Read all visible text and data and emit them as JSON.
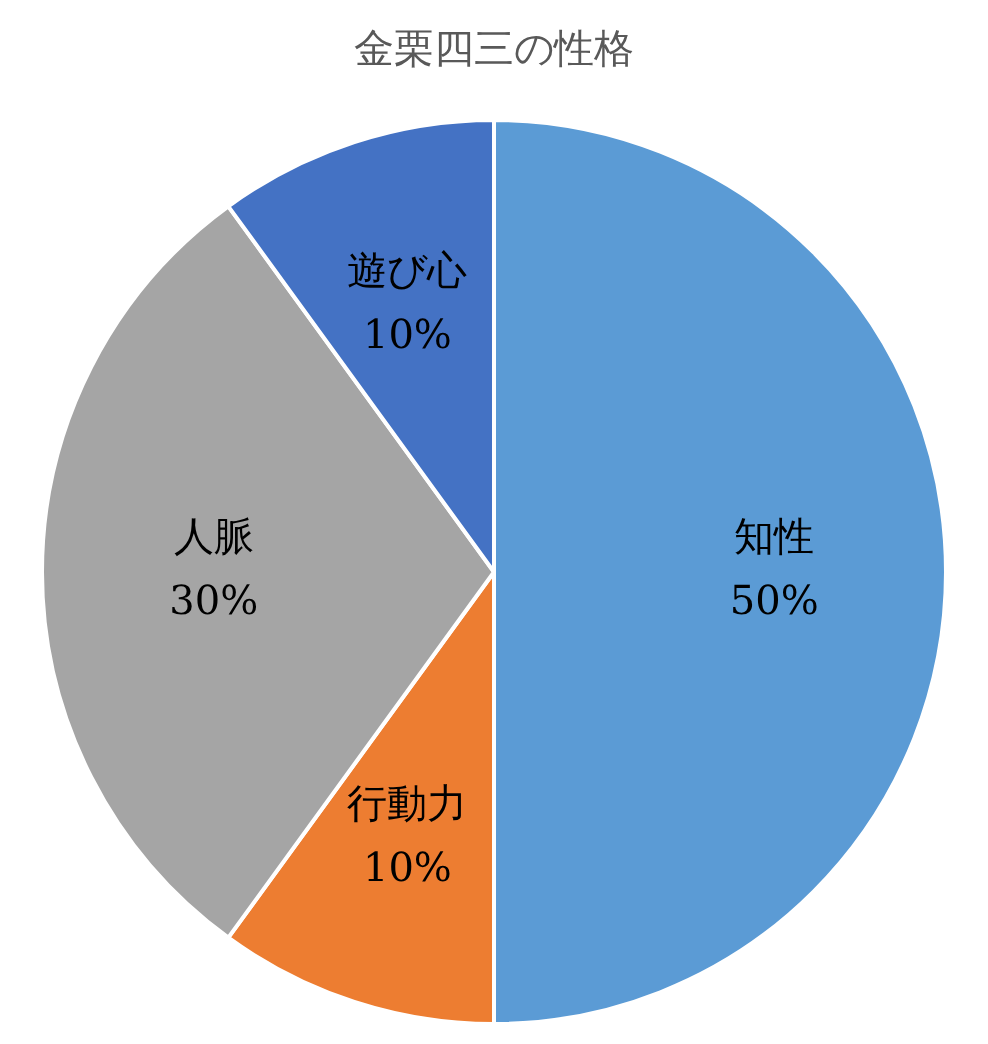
{
  "chart_data": {
    "type": "pie",
    "title": "金栗四三の性格",
    "categories": [
      "知性",
      "行動力",
      "人脈",
      "遊び心"
    ],
    "values": [
      50,
      10,
      30,
      10
    ],
    "value_labels": [
      "50%",
      "10%",
      "30%",
      "10%"
    ],
    "colors": [
      "#5b9bd5",
      "#ed7d31",
      "#a5a5a5",
      "#4472c4"
    ]
  }
}
